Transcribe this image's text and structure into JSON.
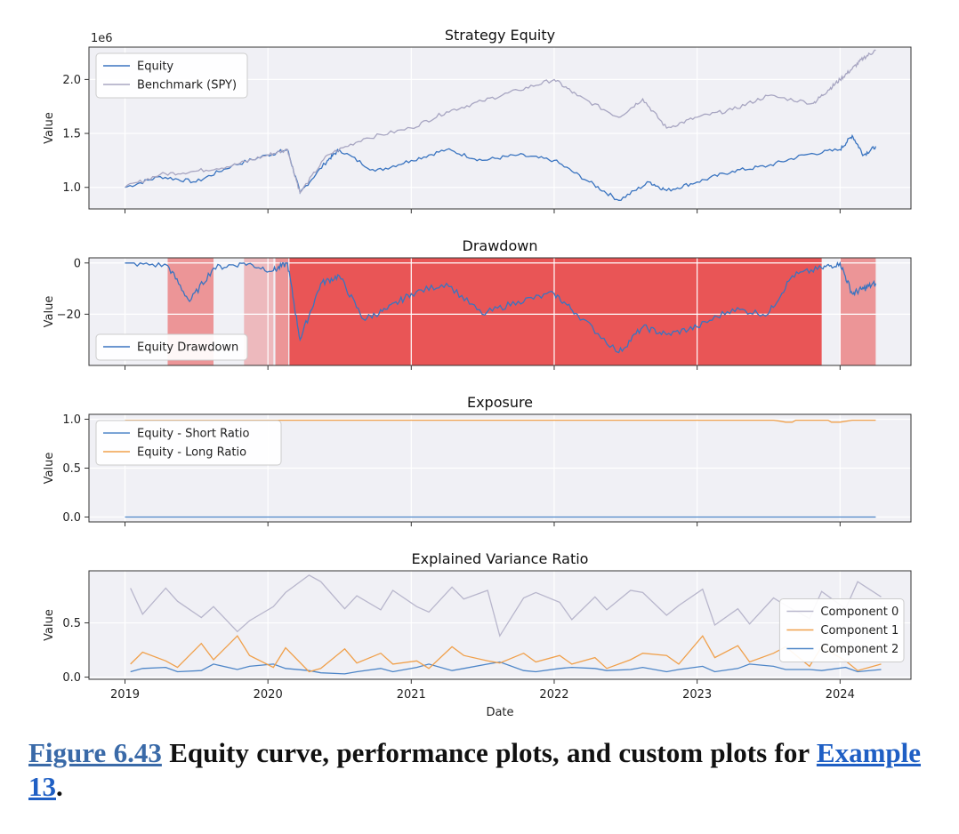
{
  "figure": {
    "x_axis": {
      "label": "Date",
      "ticks": [
        "2019",
        "2020",
        "2021",
        "2022",
        "2023",
        "2024"
      ],
      "range": [
        "2018-10-01",
        "2024-06-30"
      ]
    },
    "colors": {
      "equity": "#3a74c0",
      "benchmark": "#a8a6c2",
      "long": "#f0a04b",
      "short": "#4e86c8",
      "component_2": "#4e86c8",
      "component_1": "#f0a04b",
      "component_0": "#b8b6cc",
      "drawdown_shade": "#e83a3a",
      "plot_bg": "#f0f0f5"
    }
  },
  "chart_data": [
    {
      "type": "line",
      "title": "Strategy Equity",
      "ylabel": "Value",
      "offset_text": "1e6",
      "ylim": [
        0.8,
        2.3
      ],
      "yticks": [
        "1.0",
        "1.5",
        "2.0"
      ],
      "legend_position": "top-left",
      "grid": true,
      "series": [
        {
          "name": "Equity",
          "x": [
            "2019-01-01",
            "2019-04-01",
            "2019-07-01",
            "2019-10-01",
            "2020-01-01",
            "2020-02-20",
            "2020-03-23",
            "2020-06-01",
            "2020-07-01",
            "2020-10-01",
            "2021-01-01",
            "2021-04-01",
            "2021-07-01",
            "2021-10-01",
            "2022-01-01",
            "2022-04-01",
            "2022-06-15",
            "2022-09-01",
            "2022-10-15",
            "2023-01-01",
            "2023-04-01",
            "2023-07-01",
            "2023-10-01",
            "2024-01-01",
            "2024-02-01",
            "2024-03-01",
            "2024-04-01"
          ],
          "values": [
            1.0,
            1.1,
            1.05,
            1.2,
            1.3,
            1.35,
            0.95,
            1.25,
            1.35,
            1.15,
            1.25,
            1.35,
            1.25,
            1.3,
            1.25,
            1.05,
            0.88,
            1.05,
            0.97,
            1.05,
            1.15,
            1.2,
            1.3,
            1.35,
            1.48,
            1.3,
            1.38
          ]
        },
        {
          "name": "Benchmark (SPY)",
          "x": [
            "2019-01-01",
            "2019-04-01",
            "2019-07-01",
            "2019-10-01",
            "2020-01-01",
            "2020-02-20",
            "2020-03-23",
            "2020-06-01",
            "2020-09-01",
            "2021-01-01",
            "2021-04-01",
            "2021-07-01",
            "2021-10-01",
            "2022-01-01",
            "2022-03-01",
            "2022-06-15",
            "2022-08-15",
            "2022-10-15",
            "2023-01-01",
            "2023-04-01",
            "2023-07-01",
            "2023-10-25",
            "2023-12-01",
            "2024-01-01",
            "2024-02-01",
            "2024-03-01",
            "2024-04-01"
          ],
          "values": [
            1.0,
            1.12,
            1.15,
            1.2,
            1.3,
            1.35,
            0.95,
            1.3,
            1.45,
            1.55,
            1.7,
            1.8,
            1.9,
            2.0,
            1.85,
            1.65,
            1.82,
            1.55,
            1.65,
            1.72,
            1.85,
            1.78,
            1.9,
            2.0,
            2.1,
            2.2,
            2.27
          ]
        }
      ]
    },
    {
      "type": "line",
      "title": "Drawdown",
      "ylabel": "Value",
      "ylim": [
        -40,
        2
      ],
      "yticks": [
        "0",
        "−20"
      ],
      "legend_position": "bottom-left",
      "grid": true,
      "drawdown_periods": [
        {
          "start": "2019-04-20",
          "end": "2019-08-15"
        },
        {
          "start": "2019-11-01",
          "end": "2020-01-15"
        },
        {
          "start": "2020-01-20",
          "end": "2020-02-22"
        },
        {
          "start": "2020-02-25",
          "end": "2023-11-15"
        },
        {
          "start": "2024-01-01",
          "end": "2024-04-01"
        }
      ],
      "series": [
        {
          "name": "Equity Drawdown",
          "x": [
            "2019-01-01",
            "2019-04-20",
            "2019-06-15",
            "2019-08-15",
            "2019-11-01",
            "2020-01-15",
            "2020-02-20",
            "2020-03-23",
            "2020-05-15",
            "2020-07-01",
            "2020-09-01",
            "2020-11-01",
            "2021-01-01",
            "2021-04-01",
            "2021-07-01",
            "2021-10-01",
            "2022-01-01",
            "2022-03-01",
            "2022-06-15",
            "2022-08-15",
            "2022-10-15",
            "2023-01-01",
            "2023-04-01",
            "2023-07-01",
            "2023-09-01",
            "2023-11-15",
            "2024-01-01",
            "2024-02-01",
            "2024-03-01",
            "2024-04-01"
          ],
          "values": [
            0,
            -1,
            -15,
            -2,
            0,
            -3,
            0,
            -30,
            -8,
            -5,
            -22,
            -18,
            -12,
            -8,
            -20,
            -15,
            -12,
            -20,
            -35,
            -25,
            -28,
            -25,
            -18,
            -20,
            -5,
            -2,
            0,
            -12,
            -10,
            -8
          ]
        }
      ]
    },
    {
      "type": "line",
      "title": "Exposure",
      "ylabel": "Value",
      "ylim": [
        -0.05,
        1.05
      ],
      "yticks": [
        "0.0",
        "0.5",
        "1.0"
      ],
      "legend_position": "top-left",
      "grid": true,
      "series": [
        {
          "name": "Equity - Short Ratio",
          "x": [
            "2019-01-01",
            "2024-04-01"
          ],
          "values": [
            0.0,
            0.0
          ]
        },
        {
          "name": "Equity - Long Ratio",
          "x": [
            "2019-01-01",
            "2023-07-15",
            "2023-08-01",
            "2023-08-15",
            "2023-09-01",
            "2023-09-10",
            "2023-12-01",
            "2023-12-10",
            "2024-01-01",
            "2024-02-01",
            "2024-04-01"
          ],
          "values": [
            0.99,
            0.99,
            0.98,
            0.97,
            0.97,
            0.99,
            0.99,
            0.97,
            0.97,
            0.99,
            0.99
          ]
        }
      ]
    },
    {
      "type": "line",
      "title": "Explained Variance Ratio",
      "xlabel": "Date",
      "ylabel": "Value",
      "ylim": [
        -0.02,
        0.98
      ],
      "yticks": [
        "0.0",
        "0.5"
      ],
      "legend_position": "right",
      "grid": true,
      "series": [
        {
          "name": "Component 2",
          "x": [
            "2019-01",
            "2019-02",
            "2019-04",
            "2019-05",
            "2019-07",
            "2019-08",
            "2019-10",
            "2019-11",
            "2020-01",
            "2020-02",
            "2020-04",
            "2020-05",
            "2020-07",
            "2020-08",
            "2020-10",
            "2020-11",
            "2021-01",
            "2021-02",
            "2021-04",
            "2021-05",
            "2021-07",
            "2021-08",
            "2021-10",
            "2021-11",
            "2022-01",
            "2022-02",
            "2022-04",
            "2022-05",
            "2022-07",
            "2022-08",
            "2022-10",
            "2022-11",
            "2023-01",
            "2023-02",
            "2023-04",
            "2023-05",
            "2023-07",
            "2023-08",
            "2023-10",
            "2023-11",
            "2024-01",
            "2024-02",
            "2024-04"
          ],
          "values": [
            0.05,
            0.08,
            0.09,
            0.05,
            0.06,
            0.12,
            0.07,
            0.1,
            0.12,
            0.08,
            0.06,
            0.04,
            0.03,
            0.05,
            0.08,
            0.05,
            0.09,
            0.12,
            0.06,
            0.08,
            0.12,
            0.14,
            0.06,
            0.05,
            0.08,
            0.09,
            0.08,
            0.06,
            0.07,
            0.09,
            0.05,
            0.07,
            0.1,
            0.05,
            0.08,
            0.12,
            0.1,
            0.07,
            0.07,
            0.06,
            0.09,
            0.05,
            0.07
          ]
        },
        {
          "name": "Component 1",
          "x": [
            "2019-01",
            "2019-02",
            "2019-04",
            "2019-05",
            "2019-07",
            "2019-08",
            "2019-10",
            "2019-11",
            "2020-01",
            "2020-02",
            "2020-04",
            "2020-05",
            "2020-07",
            "2020-08",
            "2020-10",
            "2020-11",
            "2021-01",
            "2021-02",
            "2021-04",
            "2021-05",
            "2021-07",
            "2021-08",
            "2021-10",
            "2021-11",
            "2022-01",
            "2022-02",
            "2022-04",
            "2022-05",
            "2022-07",
            "2022-08",
            "2022-10",
            "2022-11",
            "2023-01",
            "2023-02",
            "2023-04",
            "2023-05",
            "2023-07",
            "2023-08",
            "2023-10",
            "2023-11",
            "2024-01",
            "2024-02",
            "2024-04"
          ],
          "values": [
            0.12,
            0.23,
            0.15,
            0.09,
            0.31,
            0.16,
            0.38,
            0.2,
            0.09,
            0.27,
            0.05,
            0.08,
            0.26,
            0.13,
            0.22,
            0.12,
            0.15,
            0.08,
            0.28,
            0.2,
            0.15,
            0.13,
            0.22,
            0.14,
            0.2,
            0.12,
            0.18,
            0.08,
            0.16,
            0.22,
            0.2,
            0.12,
            0.38,
            0.18,
            0.29,
            0.14,
            0.22,
            0.28,
            0.1,
            0.28,
            0.15,
            0.06,
            0.12
          ]
        },
        {
          "name": "Component 0",
          "x": [
            "2019-01",
            "2019-02",
            "2019-04",
            "2019-05",
            "2019-07",
            "2019-08",
            "2019-10",
            "2019-11",
            "2020-01",
            "2020-02",
            "2020-04",
            "2020-05",
            "2020-07",
            "2020-08",
            "2020-10",
            "2020-11",
            "2021-01",
            "2021-02",
            "2021-04",
            "2021-05",
            "2021-07",
            "2021-08",
            "2021-10",
            "2021-11",
            "2022-01",
            "2022-02",
            "2022-04",
            "2022-05",
            "2022-07",
            "2022-08",
            "2022-10",
            "2022-11",
            "2023-01",
            "2023-02",
            "2023-04",
            "2023-05",
            "2023-07",
            "2023-08",
            "2023-10",
            "2023-11",
            "2024-01",
            "2024-02",
            "2024-04"
          ],
          "values": [
            0.82,
            0.58,
            0.82,
            0.7,
            0.55,
            0.65,
            0.42,
            0.52,
            0.65,
            0.78,
            0.94,
            0.88,
            0.63,
            0.75,
            0.62,
            0.8,
            0.65,
            0.6,
            0.83,
            0.72,
            0.8,
            0.38,
            0.73,
            0.78,
            0.69,
            0.53,
            0.74,
            0.62,
            0.8,
            0.78,
            0.57,
            0.66,
            0.81,
            0.48,
            0.63,
            0.49,
            0.73,
            0.66,
            0.54,
            0.79,
            0.63,
            0.88,
            0.74
          ]
        }
      ]
    }
  ],
  "caption": {
    "figure_ref": "Figure 6.43",
    "text": " Equity curve, performance plots, and custom plots for ",
    "example_ref": "Example 13",
    "end": "."
  }
}
